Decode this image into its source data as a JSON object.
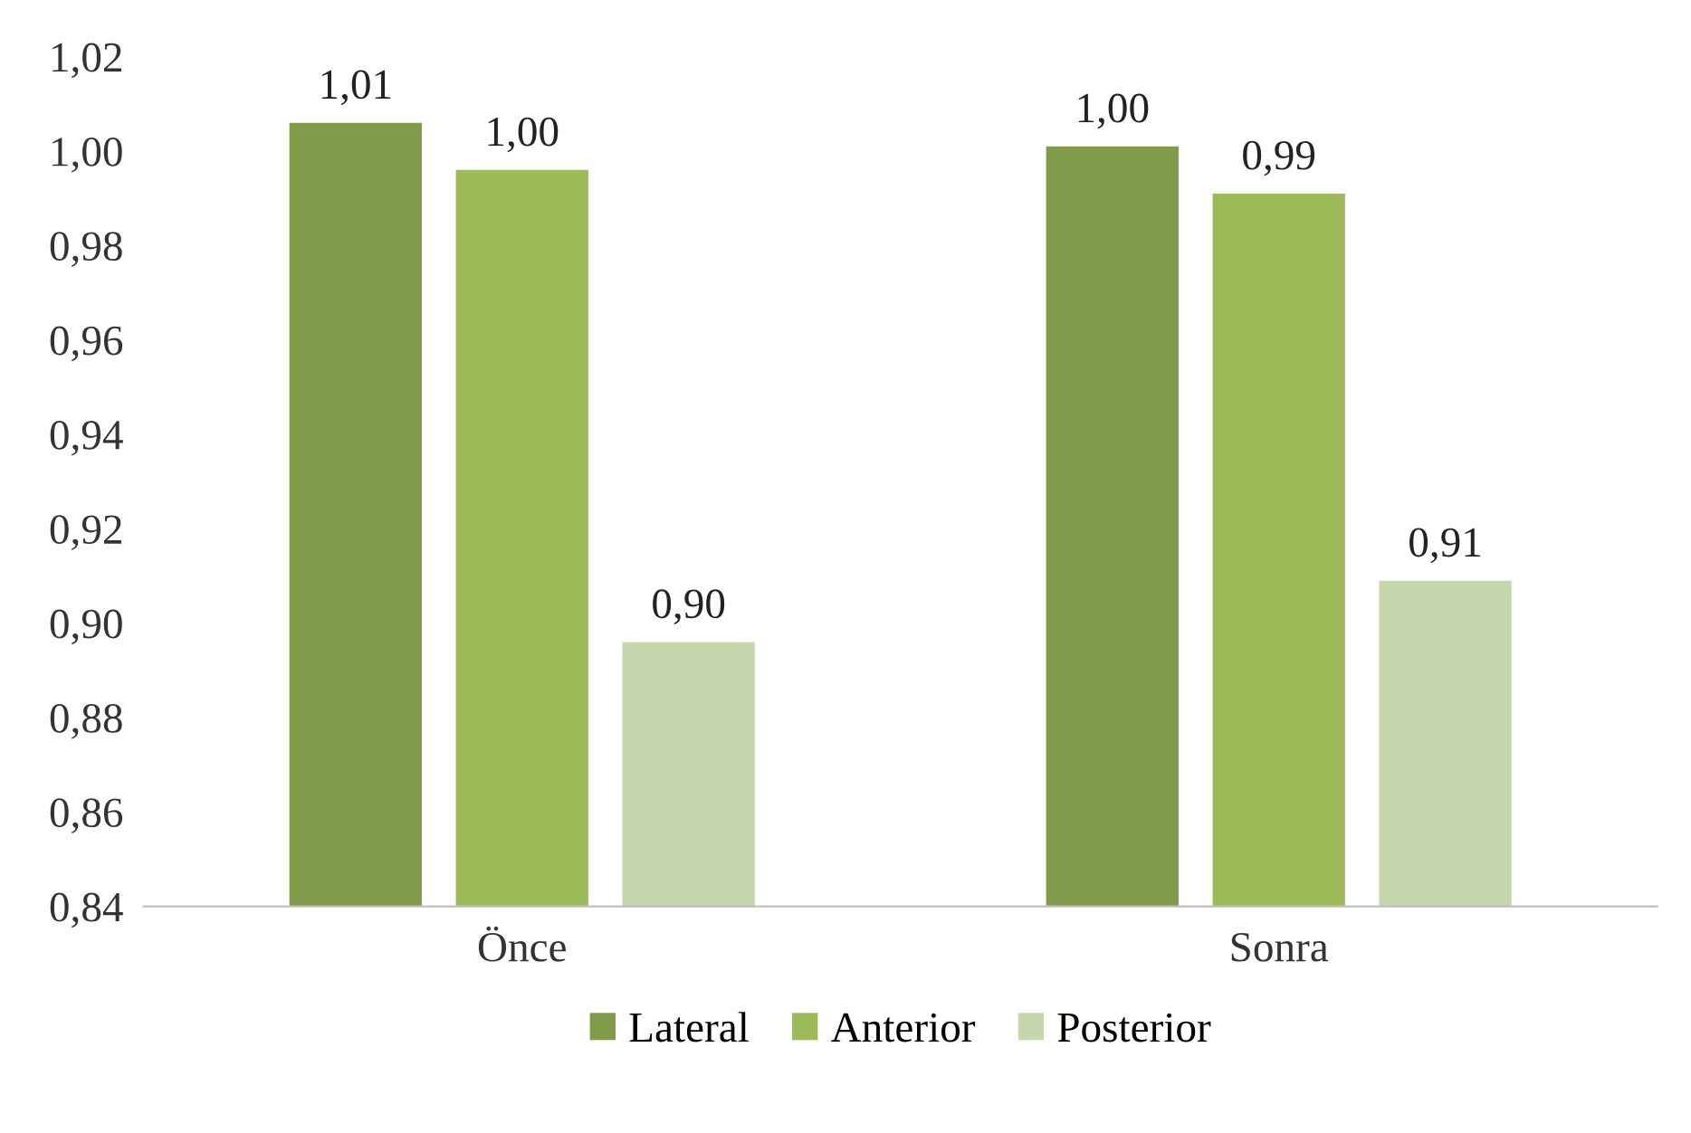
{
  "chart_data": {
    "type": "bar",
    "categories": [
      "Önce",
      "Sonra"
    ],
    "series": [
      {
        "name": "Lateral",
        "color": "#7f9a48",
        "values": [
          1.006,
          1.001
        ],
        "value_labels": [
          "1,01",
          "1,00"
        ]
      },
      {
        "name": "Anterior",
        "color": "#9bbb59",
        "values": [
          0.996,
          0.991
        ],
        "value_labels": [
          "1,00",
          "0,99"
        ]
      },
      {
        "name": "Posterior",
        "color": "#c6d6ad",
        "values": [
          0.896,
          0.909
        ],
        "value_labels": [
          "0,90",
          "0,91"
        ]
      }
    ],
    "ylim": [
      0.84,
      1.02
    ],
    "yticks": [
      {
        "value": 0.84,
        "label": "0,84"
      },
      {
        "value": 0.86,
        "label": "0,86"
      },
      {
        "value": 0.88,
        "label": "0,88"
      },
      {
        "value": 0.9,
        "label": "0,90"
      },
      {
        "value": 0.92,
        "label": "0,92"
      },
      {
        "value": 0.94,
        "label": "0,94"
      },
      {
        "value": 0.96,
        "label": "0,96"
      },
      {
        "value": 0.98,
        "label": "0,98"
      },
      {
        "value": 1.0,
        "label": "1,00"
      },
      {
        "value": 1.02,
        "label": "1,02"
      }
    ],
    "grid": false,
    "legend": "bottom"
  }
}
